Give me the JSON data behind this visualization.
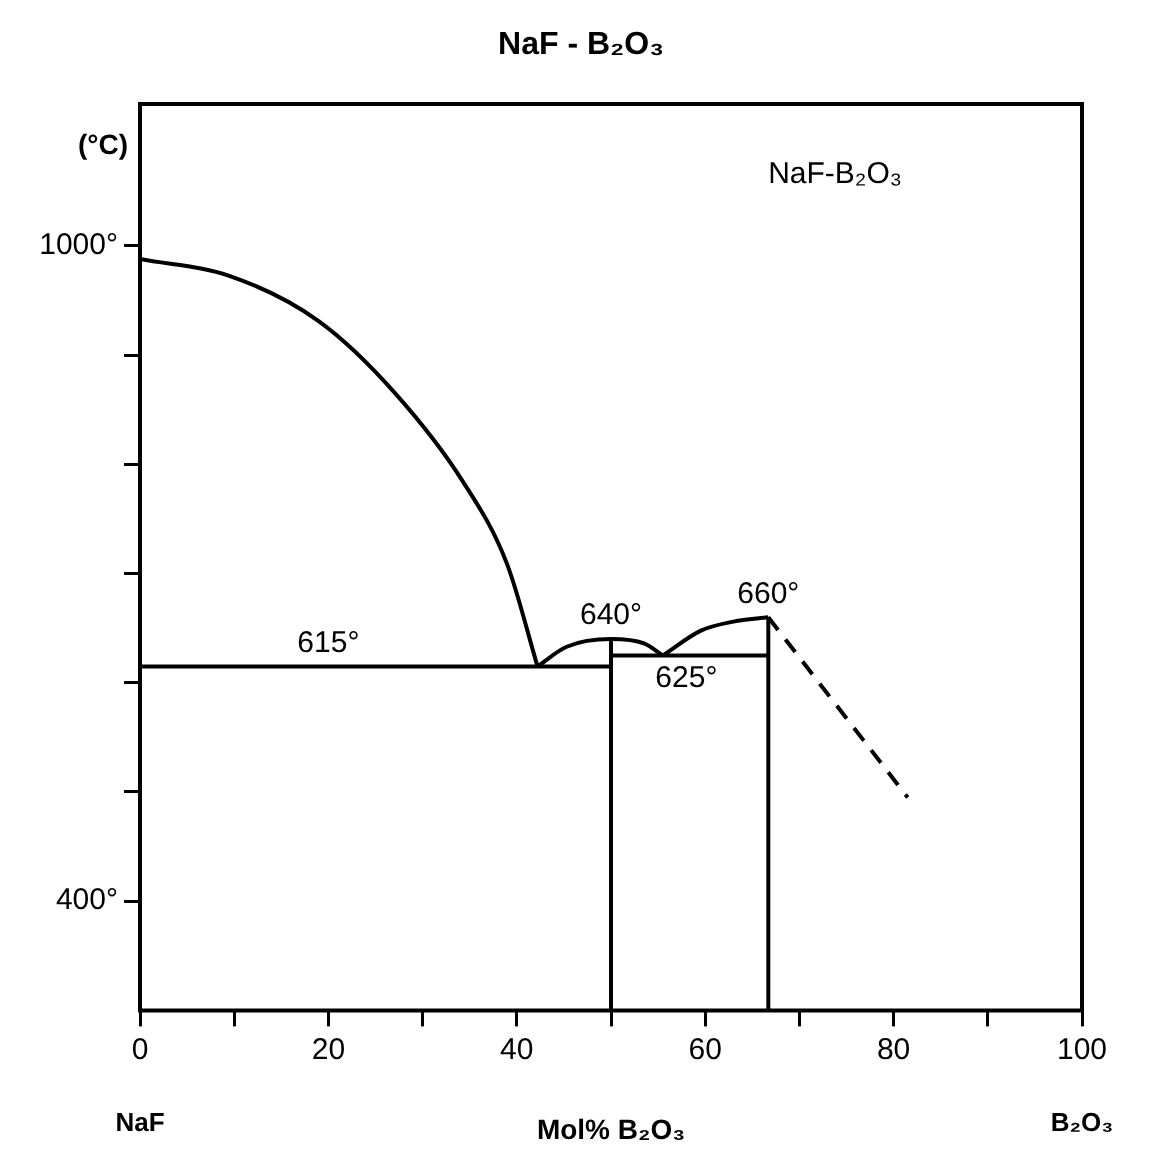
{
  "chart_data": {
    "type": "line",
    "title": "NaF - B₂O₃",
    "xlabel": "Mol% B₂O₃",
    "ylabel": "(°C)",
    "xlim": [
      0,
      100
    ],
    "ylim": [
      300,
      1130
    ],
    "xticks": [
      0,
      {
        "value": 10,
        "label": null
      },
      20,
      {
        "value": 30,
        "label": null
      },
      40,
      {
        "value": 50,
        "label": null
      },
      60,
      {
        "value": 70,
        "label": null
      },
      80,
      {
        "value": 90,
        "label": null
      },
      100
    ],
    "yticks": [
      {
        "value": 400,
        "label": "400°"
      },
      {
        "value": 500,
        "label": null
      },
      {
        "value": 600,
        "label": null
      },
      {
        "value": 700,
        "label": null
      },
      {
        "value": 800,
        "label": null
      },
      {
        "value": 900,
        "label": null
      },
      {
        "value": 1000,
        "label": "1000°"
      }
    ],
    "grid": false,
    "legend": false,
    "marker": "none",
    "series": [
      {
        "color": "#000000",
        "line_style": "solid",
        "x": [
          0,
          9.7,
          19,
          27,
          34.3,
          39,
          42.2
        ],
        "values": [
          988,
          972,
          931,
          866,
          784,
          708,
          615
        ]
      },
      {
        "color": "#000000",
        "line_style": "solid",
        "x": [
          42.2,
          45.3,
          50,
          53.5,
          55.5
        ],
        "values": [
          615,
          633,
          640,
          636,
          625
        ]
      },
      {
        "color": "#000000",
        "line_style": "solid",
        "x": [
          55.5,
          59.6,
          63,
          66.7
        ],
        "values": [
          625,
          648,
          656,
          660
        ]
      },
      {
        "color": "#000000",
        "line_style": "dashed",
        "x": [
          66.7,
          81.5
        ],
        "values": [
          660,
          495
        ]
      },
      {
        "color": "#000000",
        "line_style": "solid",
        "x": [
          0,
          50
        ],
        "values": [
          615,
          615
        ]
      },
      {
        "color": "#000000",
        "line_style": "solid",
        "x": [
          50,
          66.7
        ],
        "values": [
          625,
          625
        ]
      },
      {
        "color": "#000000",
        "line_style": "solid",
        "x": [
          50,
          50
        ],
        "values": [
          300,
          640
        ]
      },
      {
        "color": "#000000",
        "line_style": "solid",
        "x": [
          66.7,
          66.7
        ],
        "values": [
          300,
          660
        ]
      }
    ],
    "annotations": [
      "NaF-B₂O₃",
      {
        "text": "615°",
        "x": 20,
        "y": 615
      },
      {
        "text": "640°",
        "x": 50,
        "y": 640
      },
      {
        "text": "625°",
        "x": 58,
        "y": 625
      },
      {
        "text": "660°",
        "x": 66.7,
        "y": 660
      },
      "NaF",
      "B₂O₃"
    ]
  }
}
